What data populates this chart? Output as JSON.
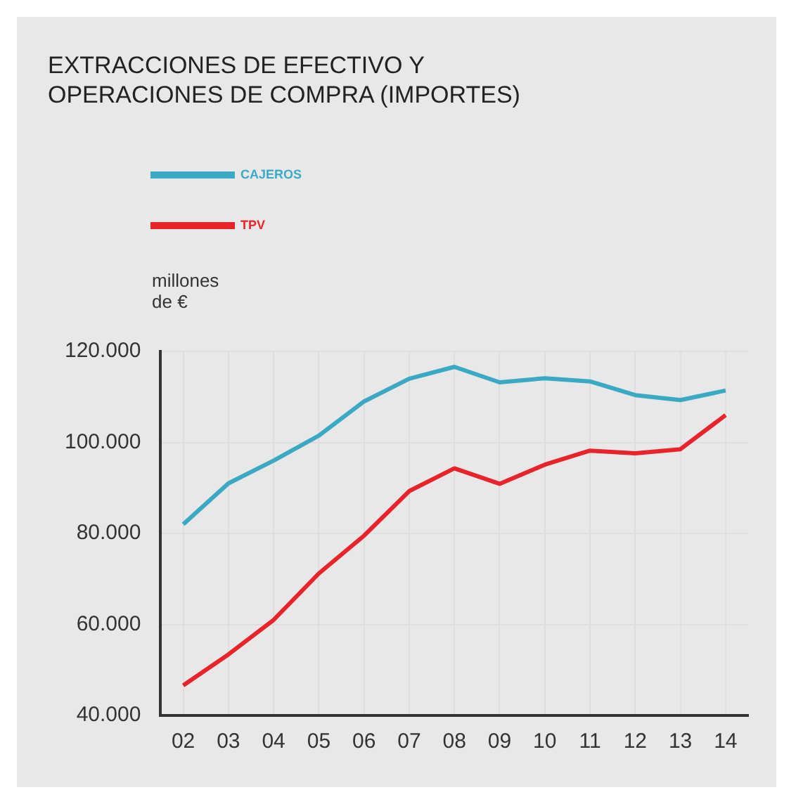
{
  "chart_data": {
    "type": "line",
    "title": "EXTRACCIONES DE EFECTIVO Y\nOPERACIONES DE COMPRA (IMPORTES)",
    "ylabel": "millones\nde €",
    "categories": [
      "02",
      "03",
      "04",
      "05",
      "06",
      "07",
      "08",
      "09",
      "10",
      "11",
      "12",
      "13",
      "14"
    ],
    "series": [
      {
        "name": "CAJEROS",
        "color": "#3aaac4",
        "values": [
          82000,
          91000,
          96000,
          101500,
          109000,
          114000,
          116600,
          113200,
          114100,
          113400,
          110400,
          109300,
          111400
        ]
      },
      {
        "name": "TPV",
        "color": "#e8242a",
        "values": [
          46600,
          53400,
          61000,
          71200,
          79500,
          89300,
          94300,
          90900,
          95100,
          98200,
          97600,
          98500,
          106000
        ]
      }
    ],
    "ylim": [
      40000,
      120000
    ],
    "yticks": [
      {
        "value": 40000,
        "label": "40.000"
      },
      {
        "value": 60000,
        "label": "60.000"
      },
      {
        "value": 80000,
        "label": "80.000"
      },
      {
        "value": 100000,
        "label": "100.000"
      },
      {
        "value": 120000,
        "label": "120.000"
      }
    ],
    "grid": true,
    "legend": "top left",
    "marker": "none",
    "line_style": "solid"
  }
}
